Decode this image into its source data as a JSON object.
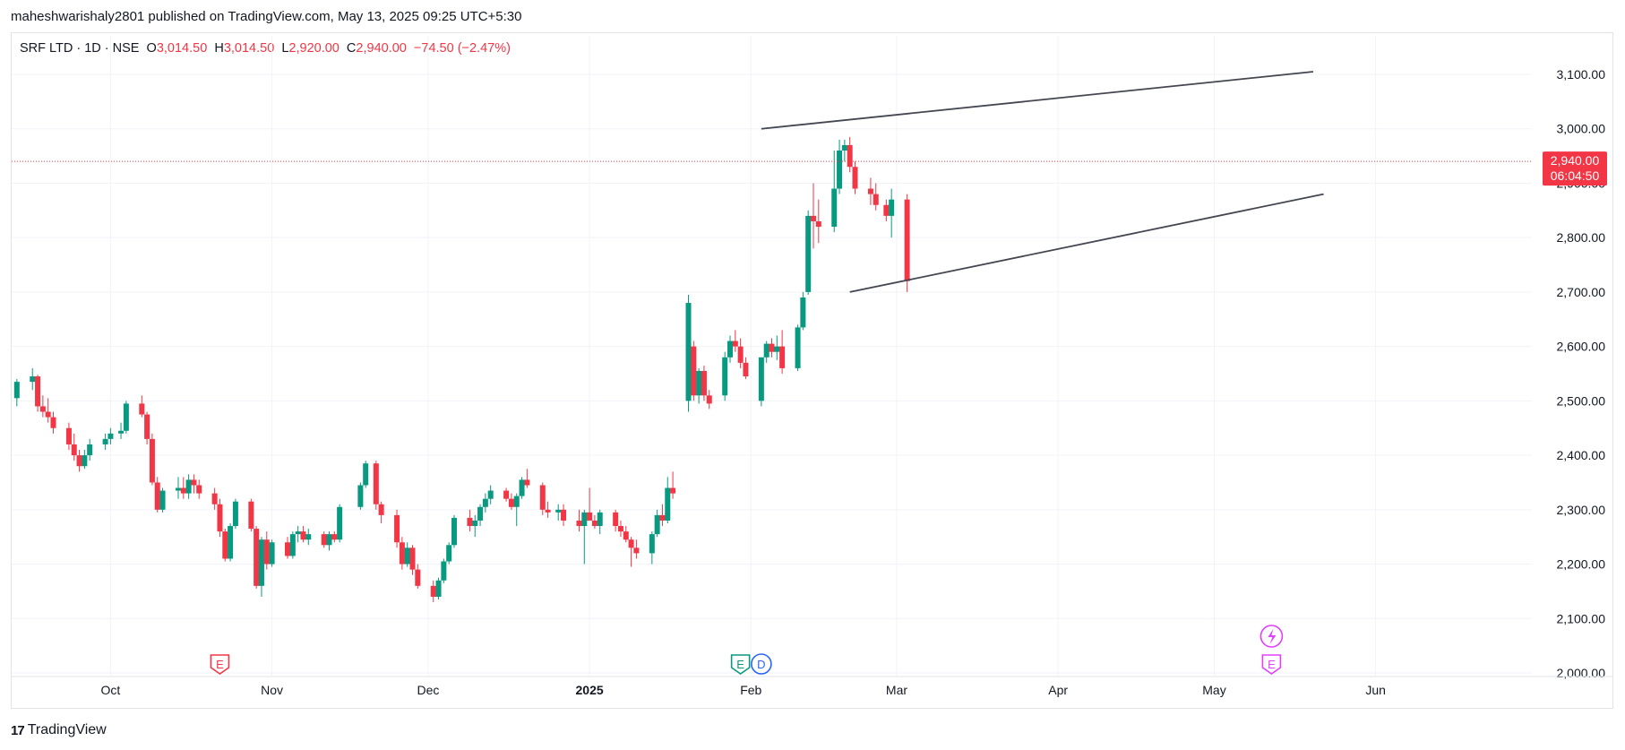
{
  "header": {
    "text": "maheshwarishaly2801 published on TradingView.com, May 13, 2025 09:25 UTC+5:30"
  },
  "legend": {
    "symbol": "SRF LTD · 1D · NSE",
    "o_label": "O",
    "o_value": "3,014.50",
    "h_label": "H",
    "h_value": "3,014.50",
    "l_label": "L",
    "l_value": "2,920.00",
    "c_label": "C",
    "c_value": "2,940.00",
    "change": "−74.50 (−2.47%)"
  },
  "footer": {
    "brand": "TradingView",
    "logo": "17"
  },
  "colors": {
    "up": "#089981",
    "down": "#f23645",
    "grid": "#f0f3fa",
    "axis_text": "#131722",
    "price_tag": "#f23645"
  },
  "chart_data": {
    "type": "candlestick",
    "ylim": [
      2000,
      3100
    ],
    "y_ticks": [
      {
        "value": 3100,
        "label": "3,100.00"
      },
      {
        "value": 3000,
        "label": "3,000.00"
      },
      {
        "value": 2900,
        "label": "2,900.00"
      },
      {
        "value": 2800,
        "label": "2,800.00"
      },
      {
        "value": 2700,
        "label": "2,700.00"
      },
      {
        "value": 2600,
        "label": "2,600.00"
      },
      {
        "value": 2500,
        "label": "2,500.00"
      },
      {
        "value": 2400,
        "label": "2,400.00"
      },
      {
        "value": 2300,
        "label": "2,300.00"
      },
      {
        "value": 2200,
        "label": "2,200.00"
      },
      {
        "value": 2100,
        "label": "2,100.00"
      },
      {
        "value": 2000,
        "label": "2,000.00"
      }
    ],
    "x_ticks": [
      {
        "date": "2024-10-01",
        "label": "Oct"
      },
      {
        "date": "2024-11-01",
        "label": "Nov"
      },
      {
        "date": "2024-12-01",
        "label": "Dec"
      },
      {
        "date": "2025-01-01",
        "label": "2025"
      },
      {
        "date": "2025-02-01",
        "label": "Feb"
      },
      {
        "date": "2025-03-01",
        "label": "Mar"
      },
      {
        "date": "2025-04-01",
        "label": "Apr"
      },
      {
        "date": "2025-05-01",
        "label": "May"
      },
      {
        "date": "2025-06-01",
        "label": "Jun"
      }
    ],
    "x_range": [
      "2024-09-12",
      "2025-07-01"
    ],
    "last_price": {
      "value": 2940,
      "label": "2,940.00",
      "countdown": "06:04:50"
    },
    "candles": [
      [
        "2024-09-13",
        2505,
        2540,
        2490,
        2535
      ],
      [
        "2024-09-16",
        2535,
        2560,
        2520,
        2545
      ],
      [
        "2024-09-17",
        2545,
        2548,
        2480,
        2490
      ],
      [
        "2024-09-18",
        2490,
        2510,
        2470,
        2480
      ],
      [
        "2024-09-19",
        2480,
        2505,
        2460,
        2470
      ],
      [
        "2024-09-20",
        2470,
        2480,
        2440,
        2450
      ],
      [
        "2024-09-23",
        2450,
        2460,
        2410,
        2420
      ],
      [
        "2024-09-24",
        2420,
        2440,
        2390,
        2400
      ],
      [
        "2024-09-25",
        2400,
        2410,
        2370,
        2380
      ],
      [
        "2024-09-26",
        2380,
        2410,
        2375,
        2400
      ],
      [
        "2024-09-27",
        2400,
        2430,
        2390,
        2420
      ],
      [
        "2024-09-30",
        2420,
        2440,
        2410,
        2430
      ],
      [
        "2024-10-01",
        2430,
        2450,
        2420,
        2440
      ],
      [
        "2024-10-03",
        2440,
        2460,
        2430,
        2445
      ],
      [
        "2024-10-04",
        2445,
        2500,
        2440,
        2495
      ],
      [
        "2024-10-07",
        2495,
        2510,
        2470,
        2475
      ],
      [
        "2024-10-08",
        2475,
        2480,
        2420,
        2430
      ],
      [
        "2024-10-09",
        2430,
        2440,
        2345,
        2350
      ],
      [
        "2024-10-10",
        2350,
        2360,
        2295,
        2300
      ],
      [
        "2024-10-11",
        2300,
        2340,
        2295,
        2335
      ],
      [
        "2024-10-14",
        2335,
        2360,
        2320,
        2340
      ],
      [
        "2024-10-15",
        2340,
        2360,
        2320,
        2330
      ],
      [
        "2024-10-16",
        2330,
        2365,
        2320,
        2355
      ],
      [
        "2024-10-17",
        2355,
        2365,
        2330,
        2345
      ],
      [
        "2024-10-18",
        2345,
        2355,
        2320,
        2330
      ],
      [
        "2024-10-21",
        2330,
        2340,
        2300,
        2310
      ],
      [
        "2024-10-22",
        2310,
        2320,
        2250,
        2260
      ],
      [
        "2024-10-23",
        2260,
        2265,
        2205,
        2210
      ],
      [
        "2024-10-24",
        2210,
        2275,
        2205,
        2270
      ],
      [
        "2024-10-25",
        2270,
        2320,
        2265,
        2315
      ],
      [
        "2024-10-28",
        2315,
        2320,
        2260,
        2265
      ],
      [
        "2024-10-29",
        2265,
        2270,
        2155,
        2160
      ],
      [
        "2024-10-30",
        2160,
        2250,
        2140,
        2245
      ],
      [
        "2024-10-31",
        2245,
        2260,
        2190,
        2200
      ],
      [
        "2024-11-01",
        2200,
        2245,
        2195,
        2240
      ],
      [
        "2024-11-04",
        2240,
        2250,
        2210,
        2215
      ],
      [
        "2024-11-05",
        2215,
        2260,
        2210,
        2255
      ],
      [
        "2024-11-06",
        2255,
        2270,
        2240,
        2260
      ],
      [
        "2024-11-07",
        2260,
        2270,
        2240,
        2245
      ],
      [
        "2024-11-08",
        2245,
        2265,
        2235,
        2255
      ],
      [
        "2024-11-11",
        2255,
        2260,
        2230,
        2235
      ],
      [
        "2024-11-12",
        2235,
        2260,
        2225,
        2255
      ],
      [
        "2024-11-13",
        2255,
        2260,
        2240,
        2245
      ],
      [
        "2024-11-14",
        2245,
        2310,
        2240,
        2305
      ],
      [
        "2024-11-18",
        2305,
        2350,
        2300,
        2345
      ],
      [
        "2024-11-19",
        2345,
        2390,
        2340,
        2385
      ],
      [
        "2024-11-21",
        2385,
        2390,
        2300,
        2310
      ],
      [
        "2024-11-22",
        2310,
        2315,
        2275,
        2290
      ],
      [
        "2024-11-25",
        2290,
        2300,
        2230,
        2240
      ],
      [
        "2024-11-26",
        2240,
        2250,
        2190,
        2200
      ],
      [
        "2024-11-27",
        2200,
        2240,
        2195,
        2230
      ],
      [
        "2024-11-28",
        2230,
        2235,
        2180,
        2190
      ],
      [
        "2024-11-29",
        2190,
        2200,
        2155,
        2160
      ],
      [
        "2024-12-02",
        2160,
        2170,
        2130,
        2140
      ],
      [
        "2024-12-03",
        2140,
        2175,
        2135,
        2170
      ],
      [
        "2024-12-04",
        2170,
        2210,
        2165,
        2205
      ],
      [
        "2024-12-05",
        2205,
        2240,
        2200,
        2235
      ],
      [
        "2024-12-06",
        2235,
        2290,
        2230,
        2285
      ],
      [
        "2024-12-09",
        2285,
        2300,
        2260,
        2270
      ],
      [
        "2024-12-10",
        2270,
        2290,
        2250,
        2280
      ],
      [
        "2024-12-11",
        2280,
        2310,
        2270,
        2305
      ],
      [
        "2024-12-12",
        2305,
        2330,
        2295,
        2320
      ],
      [
        "2024-12-13",
        2320,
        2345,
        2310,
        2335
      ],
      [
        "2024-12-16",
        2335,
        2340,
        2315,
        2320
      ],
      [
        "2024-12-17",
        2320,
        2330,
        2300,
        2305
      ],
      [
        "2024-12-18",
        2305,
        2330,
        2270,
        2325
      ],
      [
        "2024-12-19",
        2325,
        2360,
        2320,
        2355
      ],
      [
        "2024-12-20",
        2355,
        2375,
        2340,
        2345
      ],
      [
        "2024-12-23",
        2345,
        2350,
        2290,
        2300
      ],
      [
        "2024-12-24",
        2300,
        2315,
        2285,
        2295
      ],
      [
        "2024-12-26",
        2295,
        2310,
        2280,
        2300
      ],
      [
        "2024-12-27",
        2300,
        2310,
        2270,
        2280
      ],
      [
        "2024-12-30",
        2280,
        2300,
        2260,
        2270
      ],
      [
        "2024-12-31",
        2270,
        2300,
        2200,
        2295
      ],
      [
        "2025-01-01",
        2295,
        2340,
        2280,
        2280
      ],
      [
        "2025-01-02",
        2280,
        2290,
        2265,
        2270
      ],
      [
        "2025-01-03",
        2270,
        2300,
        2255,
        2295
      ],
      [
        "2025-01-06",
        2295,
        2300,
        2260,
        2270
      ],
      [
        "2025-01-07",
        2270,
        2280,
        2250,
        2260
      ],
      [
        "2025-01-08",
        2260,
        2270,
        2240,
        2245
      ],
      [
        "2025-01-09",
        2245,
        2250,
        2195,
        2230
      ],
      [
        "2025-01-10",
        2230,
        2245,
        2210,
        2220
      ],
      [
        "2025-01-13",
        2220,
        2260,
        2200,
        2255
      ],
      [
        "2025-01-14",
        2255,
        2300,
        2250,
        2290
      ],
      [
        "2025-01-15",
        2290,
        2310,
        2270,
        2280
      ],
      [
        "2025-01-16",
        2280,
        2360,
        2275,
        2340
      ],
      [
        "2025-01-17",
        2340,
        2370,
        2320,
        2330
      ],
      [
        "2025-01-20",
        2500,
        2695,
        2480,
        2680
      ],
      [
        "2025-01-21",
        2600,
        2610,
        2500,
        2510
      ],
      [
        "2025-01-22",
        2510,
        2560,
        2495,
        2555
      ],
      [
        "2025-01-23",
        2555,
        2565,
        2500,
        2510
      ],
      [
        "2025-01-24",
        2510,
        2520,
        2485,
        2495
      ],
      [
        "2025-01-27",
        2510,
        2590,
        2500,
        2580
      ],
      [
        "2025-01-28",
        2580,
        2620,
        2570,
        2610
      ],
      [
        "2025-01-29",
        2610,
        2630,
        2590,
        2600
      ],
      [
        "2025-01-30",
        2600,
        2615,
        2560,
        2570
      ],
      [
        "2025-01-31",
        2570,
        2580,
        2540,
        2545
      ],
      [
        "2025-02-03",
        2500,
        2580,
        2490,
        2580
      ],
      [
        "2025-02-04",
        2580,
        2610,
        2570,
        2605
      ],
      [
        "2025-02-05",
        2605,
        2615,
        2580,
        2590
      ],
      [
        "2025-02-06",
        2590,
        2620,
        2575,
        2600
      ],
      [
        "2025-02-07",
        2600,
        2630,
        2550,
        2560
      ],
      [
        "2025-02-10",
        2560,
        2640,
        2555,
        2635
      ],
      [
        "2025-02-11",
        2635,
        2700,
        2630,
        2690
      ],
      [
        "2025-02-12",
        2700,
        2850,
        2695,
        2840
      ],
      [
        "2025-02-13",
        2840,
        2900,
        2780,
        2830
      ],
      [
        "2025-02-14",
        2830,
        2870,
        2790,
        2820
      ],
      [
        "2025-02-17",
        2820,
        2960,
        2810,
        2890
      ],
      [
        "2025-02-18",
        2890,
        2980,
        2880,
        2960
      ],
      [
        "2025-02-19",
        2960,
        2980,
        2940,
        2970
      ],
      [
        "2025-02-20",
        2970,
        2985,
        2920,
        2930
      ],
      [
        "2025-02-21",
        2930,
        2940,
        2880,
        2890
      ],
      [
        "2025-02-24",
        2890,
        2910,
        2860,
        2880
      ],
      [
        "2025-02-25",
        2880,
        2900,
        2850,
        2860
      ],
      [
        "2025-02-27",
        2860,
        2870,
        2830,
        2840
      ],
      [
        "2025-02-28",
        2840,
        2890,
        2800,
        2870
      ],
      [
        "2025-03-03",
        2870,
        2880,
        2700,
        2720
      ]
    ],
    "trendlines": [
      {
        "name": "upper",
        "from": [
          "2025-02-03",
          3000
        ],
        "to": [
          "2025-05-20",
          3105
        ]
      },
      {
        "name": "lower",
        "from": [
          "2025-02-20",
          2700
        ],
        "to": [
          "2025-05-22",
          2880
        ]
      }
    ],
    "events": [
      {
        "date": "2024-10-22",
        "label": "E",
        "color": "#f23645",
        "kind": "earnings"
      },
      {
        "date": "2025-01-30",
        "label": "E",
        "color": "#089981",
        "kind": "earnings"
      },
      {
        "date": "2025-02-03",
        "label": "D",
        "color": "#2962ff",
        "kind": "dividend"
      },
      {
        "date": "2025-05-12",
        "label": "E",
        "color": "#e040fb",
        "kind": "earnings"
      }
    ]
  }
}
